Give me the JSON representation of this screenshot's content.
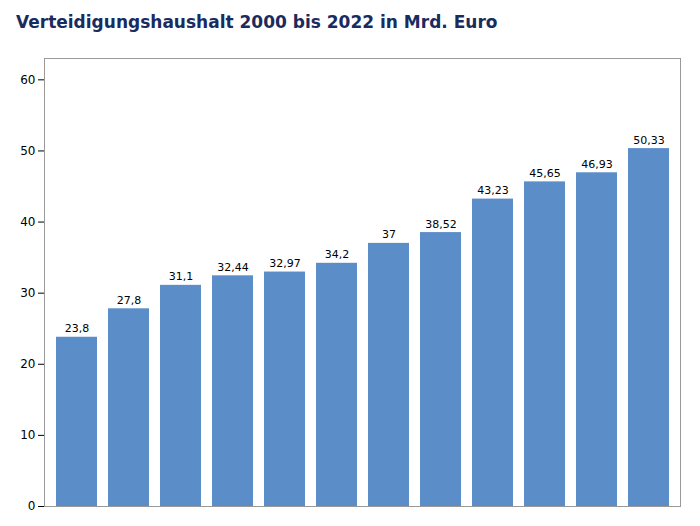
{
  "chart_data": {
    "type": "bar",
    "title": "Verteidigungshaushalt 2000 bis 2022 in Mrd. Euro",
    "categories": [
      null,
      null,
      null,
      null,
      null,
      null,
      null,
      null,
      null,
      null,
      null,
      null
    ],
    "values": [
      23.8,
      27.8,
      31.1,
      32.44,
      32.97,
      34.2,
      37.0,
      38.52,
      43.23,
      45.65,
      46.93,
      50.33
    ],
    "value_labels": [
      "23,8",
      "27,8",
      "31,1",
      "32,44",
      "32,97",
      "34,2",
      "37",
      "38,52",
      "43,23",
      "45,65",
      "46,93",
      "50,33"
    ],
    "data_labels": true,
    "color": "#5B8DC8",
    "ylim": [
      0,
      63
    ],
    "yticks": [
      0,
      10,
      20,
      30,
      40,
      50,
      60
    ],
    "grid": false,
    "tick_labels": "y"
  }
}
